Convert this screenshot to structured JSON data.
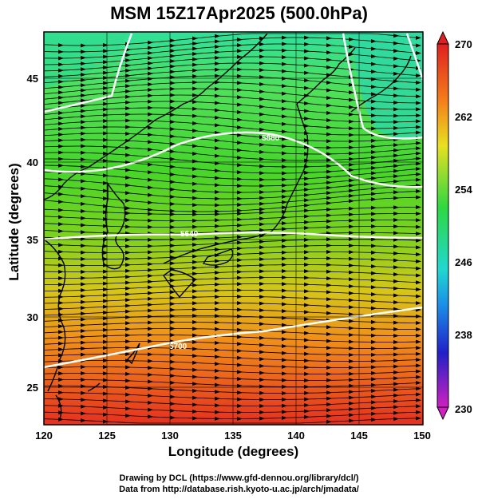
{
  "title": "MSM 15Z17Apr2025 (500.0hPa)",
  "x_axis": {
    "label": "Longitude (degrees)",
    "ticks": [
      "120",
      "125",
      "130",
      "135",
      "140",
      "145",
      "150"
    ]
  },
  "y_axis": {
    "label": "Latitude  (degrees)",
    "ticks": [
      "25",
      "30",
      "35",
      "40",
      "45"
    ]
  },
  "colorbar": {
    "ticks": [
      "270",
      "262",
      "254",
      "246",
      "238",
      "230"
    ]
  },
  "contours": [
    "5880",
    "5640",
    "5700"
  ],
  "credits": {
    "line1": "Drawing by DCL (https://www.gfd-dennou.org/library/dcl/)",
    "line2": "Data from http://database.rish.kyoto-u.ac.jp/arch/jmadata/"
  },
  "colors": {
    "warm": "#e8401c",
    "mid": "#6ad21e",
    "cool": "#2fdc9a",
    "contour": "#ffffff"
  }
}
